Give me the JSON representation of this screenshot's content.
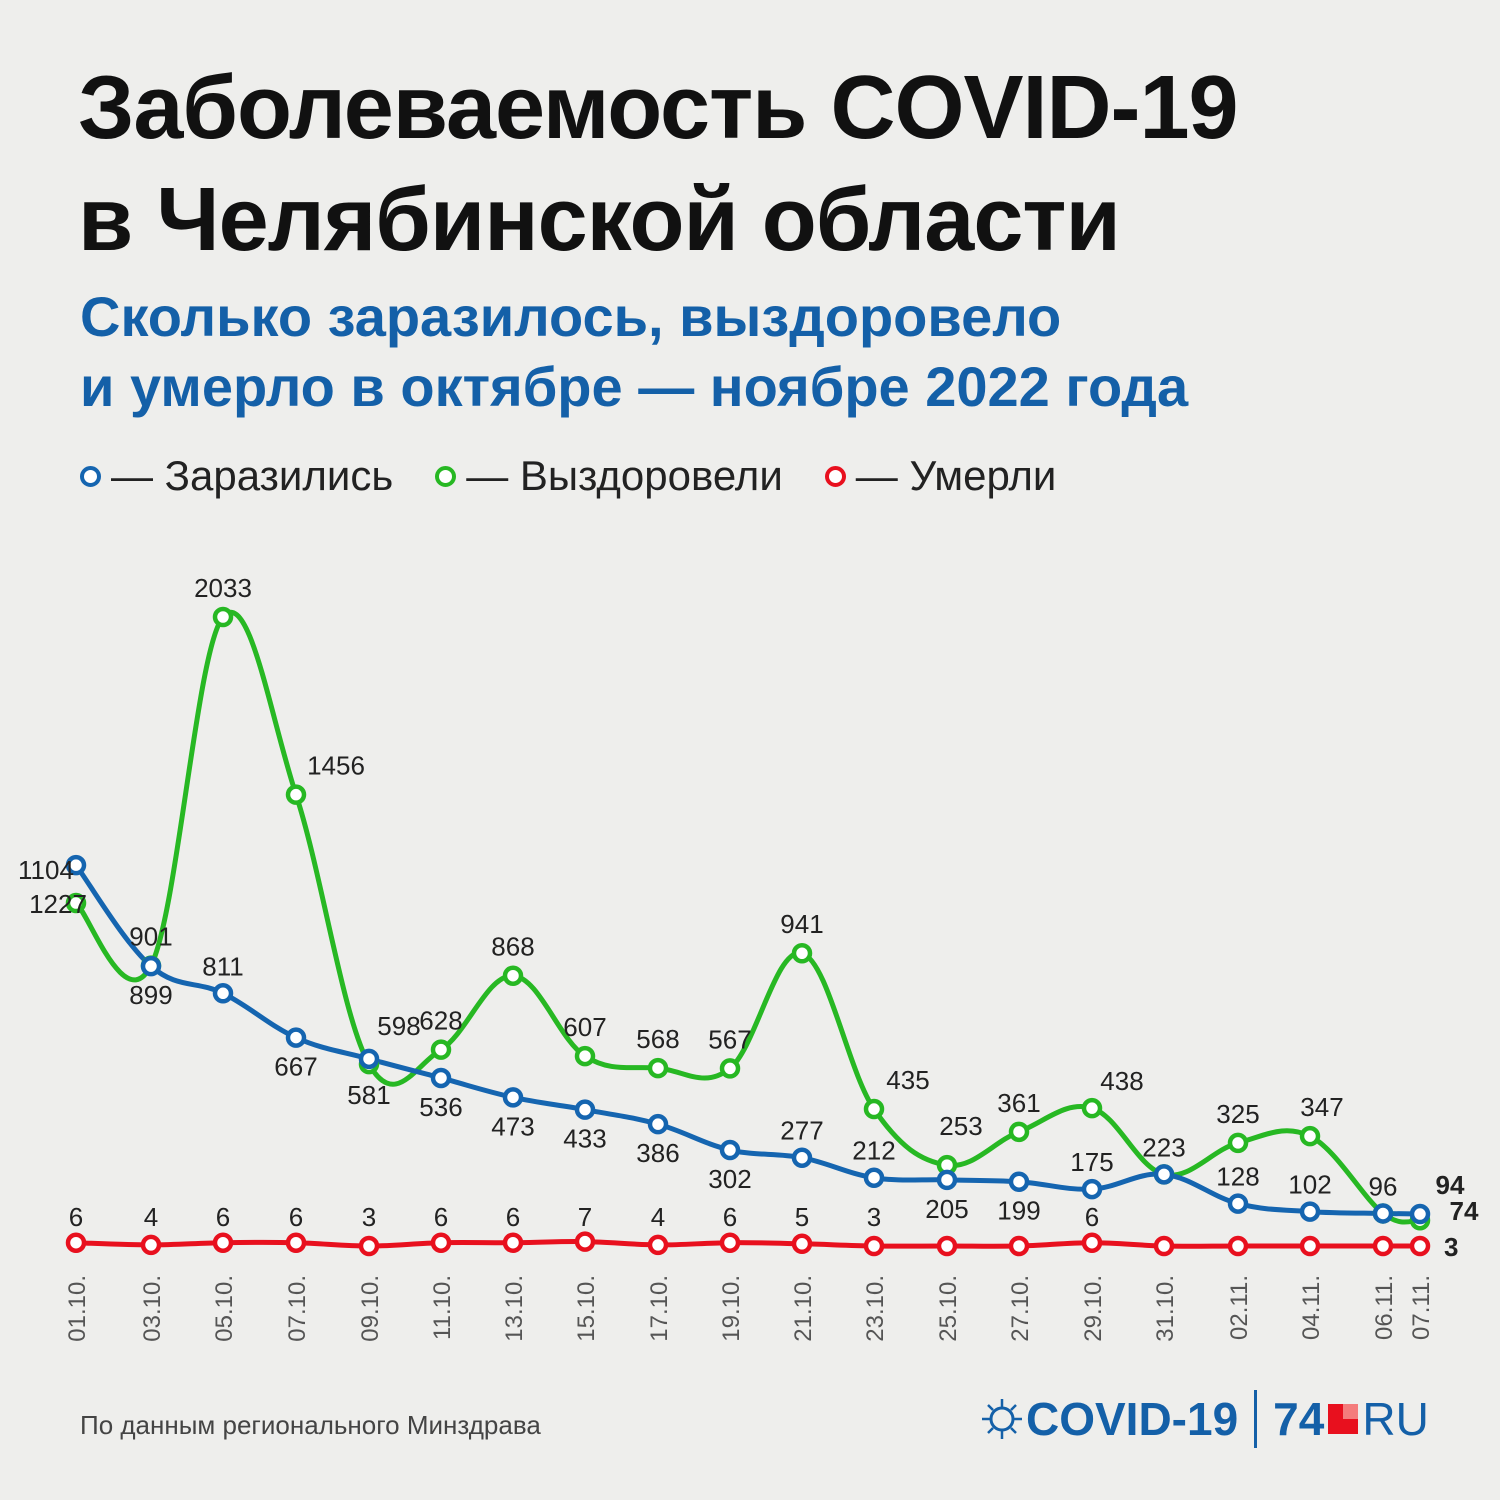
{
  "title_line1": "Заболеваемость COVID-19",
  "title_line2": "в Челябинской области",
  "subtitle_line1": "Сколько заразилось, выздоровело",
  "subtitle_line2": "и умерло в октябре — ноябре 2022 года",
  "legend": [
    {
      "label": "— Заразились",
      "color": "#1565b0"
    },
    {
      "label": "— Выздоровели",
      "color": "#27b823"
    },
    {
      "label": "— Умерли",
      "color": "#e8101e"
    }
  ],
  "source": "По данным регионального Минздрава",
  "logo": {
    "covid": "COVID-19",
    "num": "74",
    "ru": "RU"
  },
  "chart_data": {
    "type": "line",
    "x": [
      "01.10.",
      "03.10.",
      "05.10.",
      "07.10.",
      "09.10.",
      "11.10.",
      "13.10.",
      "15.10.",
      "17.10.",
      "19.10.",
      "21.10.",
      "23.10.",
      "25.10.",
      "27.10.",
      "29.10.",
      "31.10.",
      "02.11.",
      "04.11.",
      "06.11.",
      "07.11."
    ],
    "series": [
      {
        "name": "Заразились",
        "color": "#1565b0",
        "values": [
          1227,
          899,
          811,
          667,
          598,
          536,
          473,
          433,
          386,
          302,
          277,
          212,
          205,
          199,
          175,
          223,
          128,
          102,
          96,
          94
        ]
      },
      {
        "name": "Выздоровели",
        "color": "#27b823",
        "values": [
          1104,
          901,
          2033,
          1456,
          581,
          628,
          868,
          607,
          568,
          567,
          941,
          435,
          253,
          361,
          438,
          223,
          325,
          347,
          96,
          74
        ]
      },
      {
        "name": "Умерли",
        "color": "#e8101e",
        "values": [
          6,
          4,
          6,
          6,
          3,
          6,
          6,
          7,
          4,
          6,
          5,
          3,
          3,
          3,
          6,
          3,
          3,
          3,
          3,
          3
        ]
      }
    ],
    "data_labels": {
      "Заразились": [
        "1227",
        "899",
        "811",
        "667",
        "598",
        "536",
        "473",
        "433",
        "386",
        "302",
        "277",
        "212",
        "205",
        "199",
        "175",
        "223",
        "128",
        "102",
        "96",
        "94"
      ],
      "Выздоровели": [
        "1104",
        "901",
        "2033",
        "1456",
        "581",
        "628",
        "868",
        "607",
        "568",
        "567",
        "941",
        "435",
        "253",
        "361",
        "438",
        "",
        "325",
        "347",
        "",
        "74"
      ],
      "Умерли": [
        "6",
        "4",
        "6",
        "6",
        "3",
        "6",
        "6",
        "7",
        "4",
        "6",
        "5",
        "3",
        "",
        "",
        "6",
        "",
        "",
        "",
        "",
        "3"
      ]
    },
    "grid": false,
    "legend_position": "top-left"
  }
}
